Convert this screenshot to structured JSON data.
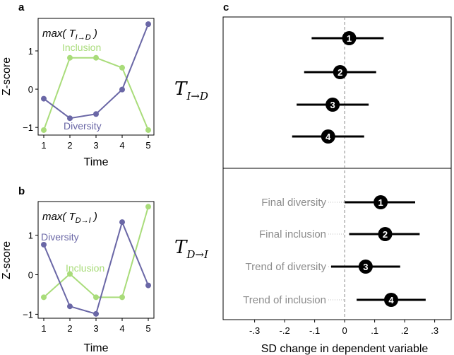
{
  "colors": {
    "inclusion": "#a9dc7a",
    "diversity": "#6a67a6",
    "marker": "#000000",
    "row_label": "#8c8c8c"
  },
  "panel_a": {
    "letter": "a"
  },
  "panel_b": {
    "letter": "b"
  },
  "panel_c": {
    "letter": "c"
  },
  "chart_data": [
    {
      "id": "a",
      "type": "line",
      "title_prefix": "max( T",
      "title_sub": "I→D",
      "title_suffix": " )",
      "xlabel": "Time",
      "ylabel": "Z-score",
      "x": [
        1,
        2,
        3,
        4,
        5
      ],
      "xticks": [
        "1",
        "2",
        "3",
        "4",
        "5"
      ],
      "yticks": [
        -1,
        0,
        1
      ],
      "ytick_labels": [
        "−1",
        "0",
        "1"
      ],
      "ylim": [
        -1.2,
        1.85
      ],
      "series": [
        {
          "name": "Inclusion",
          "color": "#a9dc7a",
          "values": [
            -1.07,
            0.82,
            0.82,
            0.56,
            -1.07
          ]
        },
        {
          "name": "Diversity",
          "color": "#6a67a6",
          "values": [
            -0.25,
            -0.76,
            -0.65,
            -0.01,
            1.7
          ]
        }
      ]
    },
    {
      "id": "b",
      "type": "line",
      "title_prefix": "max( T",
      "title_sub": "D→I",
      "title_suffix": " )",
      "xlabel": "Time",
      "ylabel": "Z-score",
      "x": [
        1,
        2,
        3,
        4,
        5
      ],
      "xticks": [
        "1",
        "2",
        "3",
        "4",
        "5"
      ],
      "yticks": [
        -1,
        0,
        1
      ],
      "ytick_labels": [
        "−1",
        "0",
        "1"
      ],
      "ylim": [
        -1.1,
        1.85
      ],
      "series": [
        {
          "name": "Inclusion",
          "color": "#a9dc7a",
          "values": [
            -0.57,
            0.02,
            -0.57,
            -0.57,
            1.72
          ]
        },
        {
          "name": "Diversity",
          "color": "#6a67a6",
          "values": [
            0.76,
            -0.8,
            -0.99,
            1.33,
            -0.27
          ]
        }
      ]
    },
    {
      "id": "c",
      "type": "forest",
      "xlabel": "SD change in dependent variable",
      "xticks": [
        -0.3,
        -0.2,
        -0.1,
        0,
        0.1,
        0.2,
        0.3
      ],
      "xtick_labels": [
        "-.3",
        "-.2",
        "-.1",
        "0",
        ".1",
        ".2",
        ".3"
      ],
      "xlim": [
        -0.405,
        0.355
      ],
      "groups": [
        {
          "label_main": "T",
          "label_sub": "I→D",
          "rows": [
            {
              "badge": "1",
              "label": "",
              "estimate": 0.015,
              "low": -0.11,
              "high": 0.13
            },
            {
              "badge": "2",
              "label": "",
              "estimate": -0.015,
              "low": -0.135,
              "high": 0.105
            },
            {
              "badge": "3",
              "label": "",
              "estimate": -0.04,
              "low": -0.16,
              "high": 0.08
            },
            {
              "badge": "4",
              "label": "",
              "estimate": -0.055,
              "low": -0.175,
              "high": 0.065
            }
          ]
        },
        {
          "label_main": "T",
          "label_sub": "D→I",
          "rows": [
            {
              "badge": "1",
              "label": "Final diversity",
              "estimate": 0.12,
              "low": 0.0,
              "high": 0.235
            },
            {
              "badge": "2",
              "label": "Final inclusion",
              "estimate": 0.135,
              "low": 0.015,
              "high": 0.25
            },
            {
              "badge": "3",
              "label": "Trend of diversity",
              "estimate": 0.07,
              "low": -0.045,
              "high": 0.185
            },
            {
              "badge": "4",
              "label": "Trend of inclusion",
              "estimate": 0.155,
              "low": 0.04,
              "high": 0.27
            }
          ]
        }
      ]
    }
  ]
}
